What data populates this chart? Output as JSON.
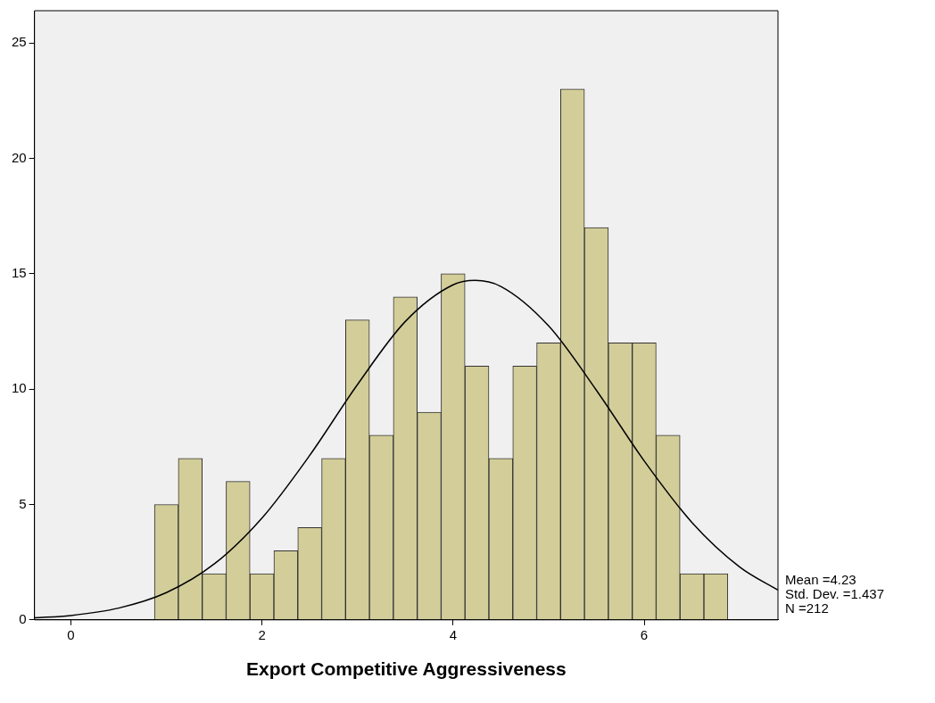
{
  "chart_data": {
    "type": "histogram",
    "xlabel": "Export Competitive Aggressiveness",
    "bins": [
      0.875,
      1.125,
      1.375,
      1.625,
      1.875,
      2.125,
      2.375,
      2.625,
      2.875,
      3.125,
      3.375,
      3.625,
      3.875,
      4.125,
      4.375,
      4.625,
      4.875,
      5.125,
      5.375,
      5.625,
      5.875,
      6.125,
      6.375,
      6.625,
      6.875
    ],
    "values": [
      5,
      7,
      2,
      6,
      2,
      3,
      4,
      7,
      13,
      8,
      14,
      9,
      15,
      11,
      7,
      11,
      12,
      23,
      17,
      12,
      12,
      8,
      2,
      2
    ],
    "color": "#d3ce99",
    "series": [
      {
        "type": "line",
        "color": "#000000",
        "x": [
          -0.38,
          0,
          0.5,
          1,
          1.5,
          2,
          2.5,
          3,
          3.5,
          4,
          4.23,
          4.5,
          5,
          5.5,
          6,
          6.5,
          7,
          7.4
        ],
        "values": [
          0.09,
          0.19,
          0.51,
          1.18,
          2.42,
          4.41,
          7.13,
          10.2,
          12.93,
          14.52,
          14.71,
          14.45,
          12.74,
          9.95,
          6.89,
          4.22,
          2.29,
          1.29
        ]
      }
    ],
    "xlim": [
      -0.38,
      7.4
    ],
    "xticks": [
      0,
      2,
      4,
      6
    ],
    "ylim": [
      0,
      26.4
    ],
    "yticks": [
      0,
      5,
      10,
      15,
      20,
      25
    ],
    "grid": false,
    "legend": false,
    "marker": "none",
    "annotations": [
      "Mean =4.23",
      "Std. Dev. =1.437",
      "N =212"
    ]
  }
}
